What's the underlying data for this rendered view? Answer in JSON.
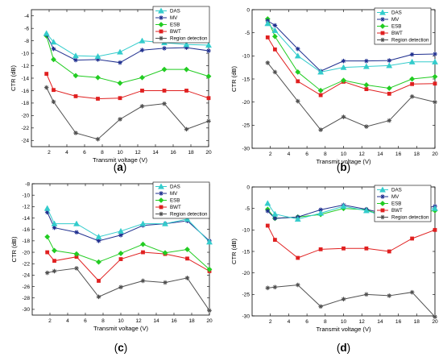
{
  "figure": {
    "series_styles": [
      {
        "name": "DAS",
        "color": "#33cccc",
        "marker": "triangle"
      },
      {
        "name": "MV",
        "color": "#1f2f8f",
        "marker": "star"
      },
      {
        "name": "ESB",
        "color": "#22cc22",
        "marker": "diamond"
      },
      {
        "name": "BWT",
        "color": "#e02020",
        "marker": "square"
      },
      {
        "name": "Region detection",
        "color": "#505050",
        "marker": "star"
      }
    ]
  },
  "chart_data": [
    {
      "type": "line",
      "panel_label": "a",
      "title": "",
      "xlabel": "Transmit voltage (V)",
      "ylabel": "CTR (dB)",
      "x": [
        1.7,
        2.5,
        5,
        7.5,
        10,
        12.5,
        15,
        17.5,
        20
      ],
      "xlim": [
        0,
        20
      ],
      "xticks": [
        2,
        4,
        6,
        8,
        10,
        12,
        14,
        16,
        18,
        20
      ],
      "ylim": [
        -25,
        -3
      ],
      "yticks": [
        -24,
        -22,
        -20,
        -18,
        -16,
        -14,
        -12,
        -10,
        -8,
        -6,
        -4
      ],
      "legend_position": "top-right",
      "series": [
        {
          "name": "DAS",
          "values": [
            -6.8,
            -8.2,
            -10.4,
            -10.5,
            -9.8,
            -8.0,
            -8.3,
            -8.6,
            -8.7
          ]
        },
        {
          "name": "MV",
          "values": [
            -7.0,
            -9.3,
            -11.1,
            -11.0,
            -11.5,
            -9.5,
            -9.2,
            -9.1,
            -9.6
          ]
        },
        {
          "name": "ESB",
          "values": [
            -7.2,
            -11.0,
            -13.6,
            -13.9,
            -14.8,
            -13.9,
            -12.6,
            -12.6,
            -13.7
          ]
        },
        {
          "name": "BWT",
          "values": [
            -13.3,
            -15.9,
            -16.9,
            -17.3,
            -17.2,
            -16.0,
            -16.0,
            -16.0,
            -17.2
          ]
        },
        {
          "name": "Region detection",
          "values": [
            -15.5,
            -17.8,
            -22.8,
            -23.8,
            -20.6,
            -18.5,
            -18.1,
            -22.2,
            -20.9
          ]
        }
      ]
    },
    {
      "type": "line",
      "panel_label": "b",
      "title": "",
      "xlabel": "Transmit voltage (V)",
      "ylabel": "CTR (dB)",
      "x": [
        1.7,
        2.5,
        5,
        7.5,
        10,
        12.5,
        15,
        17.5,
        20
      ],
      "xlim": [
        0,
        20
      ],
      "xticks": [
        2,
        4,
        6,
        8,
        10,
        12,
        14,
        16,
        18,
        20
      ],
      "ylim": [
        -30,
        0
      ],
      "yticks": [
        -30,
        -25,
        -20,
        -15,
        -10,
        -5,
        0
      ],
      "legend_position": "top-right",
      "series": [
        {
          "name": "DAS",
          "values": [
            -3.0,
            -4.5,
            -10.0,
            -13.5,
            -12.5,
            -12.3,
            -12.1,
            -11.3,
            -11.3
          ]
        },
        {
          "name": "MV",
          "values": [
            -2.4,
            -3.4,
            -8.5,
            -13.3,
            -11.1,
            -11.1,
            -11.0,
            -9.7,
            -9.6
          ]
        },
        {
          "name": "ESB",
          "values": [
            -2.0,
            -5.8,
            -13.5,
            -17.5,
            -15.3,
            -16.3,
            -17.0,
            -15.0,
            -14.5
          ]
        },
        {
          "name": "BWT",
          "values": [
            -6.0,
            -8.6,
            -15.5,
            -18.5,
            -15.6,
            -17.2,
            -18.2,
            -16.1,
            -16.0
          ]
        },
        {
          "name": "Region detection",
          "values": [
            -11.5,
            -13.5,
            -19.8,
            -26.0,
            -23.2,
            -25.3,
            -24.0,
            -18.8,
            -20.0
          ]
        }
      ]
    },
    {
      "type": "line",
      "panel_label": "c",
      "title": "",
      "xlabel": "Transmit voltage (V)",
      "ylabel": "CTR (dB)",
      "x": [
        1.7,
        2.5,
        5,
        7.5,
        10,
        12.5,
        15,
        17.5,
        20
      ],
      "xlim": [
        0,
        20
      ],
      "xticks": [
        2,
        4,
        6,
        8,
        10,
        12,
        14,
        16,
        18,
        20
      ],
      "ylim": [
        -31,
        -8
      ],
      "yticks": [
        -30,
        -28,
        -26,
        -24,
        -22,
        -20,
        -18,
        -16,
        -14,
        -12,
        -10,
        -8
      ],
      "legend_position": "top-right",
      "series": [
        {
          "name": "DAS",
          "values": [
            -12.3,
            -15.0,
            -15.0,
            -17.3,
            -16.3,
            -15.0,
            -15.0,
            -14.2,
            -18.2
          ]
        },
        {
          "name": "MV",
          "values": [
            -13.0,
            -15.7,
            -16.5,
            -18.0,
            -17.0,
            -15.3,
            -15.0,
            -14.5,
            -18.0
          ]
        },
        {
          "name": "ESB",
          "values": [
            -17.3,
            -19.7,
            -20.3,
            -21.7,
            -20.2,
            -18.6,
            -20.1,
            -19.5,
            -23.0
          ]
        },
        {
          "name": "BWT",
          "values": [
            -20.0,
            -21.5,
            -20.8,
            -25.0,
            -21.2,
            -20.0,
            -20.3,
            -21.1,
            -23.3
          ]
        },
        {
          "name": "Region detection",
          "values": [
            -23.6,
            -23.3,
            -22.8,
            -27.8,
            -26.1,
            -25.0,
            -25.3,
            -24.5,
            -30.2
          ]
        }
      ]
    },
    {
      "type": "line",
      "panel_label": "d",
      "title": "",
      "xlabel": "Transmit voltage (V)",
      "ylabel": "CTR (dB)",
      "x": [
        1.7,
        2.5,
        5,
        7.5,
        10,
        12.5,
        15,
        17.5,
        20
      ],
      "xlim": [
        0,
        20
      ],
      "xticks": [
        2,
        4,
        6,
        8,
        10,
        12,
        14,
        16,
        18,
        20
      ],
      "ylim": [
        -30,
        0
      ],
      "yticks": [
        -30,
        -25,
        -20,
        -15,
        -10,
        -5,
        0
      ],
      "legend_position": "top-right",
      "series": [
        {
          "name": "DAS",
          "values": [
            -3.8,
            -6.3,
            -7.5,
            -6.1,
            -4.5,
            -5.5,
            -7.2,
            -5.6,
            -5.0
          ]
        },
        {
          "name": "MV",
          "values": [
            -5.6,
            -7.3,
            -7.0,
            -5.3,
            -4.2,
            -5.2,
            -6.5,
            -5.5,
            -4.5
          ]
        },
        {
          "name": "ESB",
          "values": [
            -5.2,
            -7.3,
            -7.0,
            -6.4,
            -5.0,
            -5.3,
            -7.3,
            -6.0,
            -5.5
          ]
        },
        {
          "name": "BWT",
          "values": [
            -9.0,
            -12.3,
            -16.5,
            -14.5,
            -14.3,
            -14.3,
            -15.0,
            -12.0,
            -10.0
          ]
        },
        {
          "name": "Region detection",
          "values": [
            -23.5,
            -23.3,
            -22.8,
            -27.8,
            -26.1,
            -25.0,
            -25.3,
            -24.5,
            -30.2
          ]
        }
      ]
    }
  ]
}
